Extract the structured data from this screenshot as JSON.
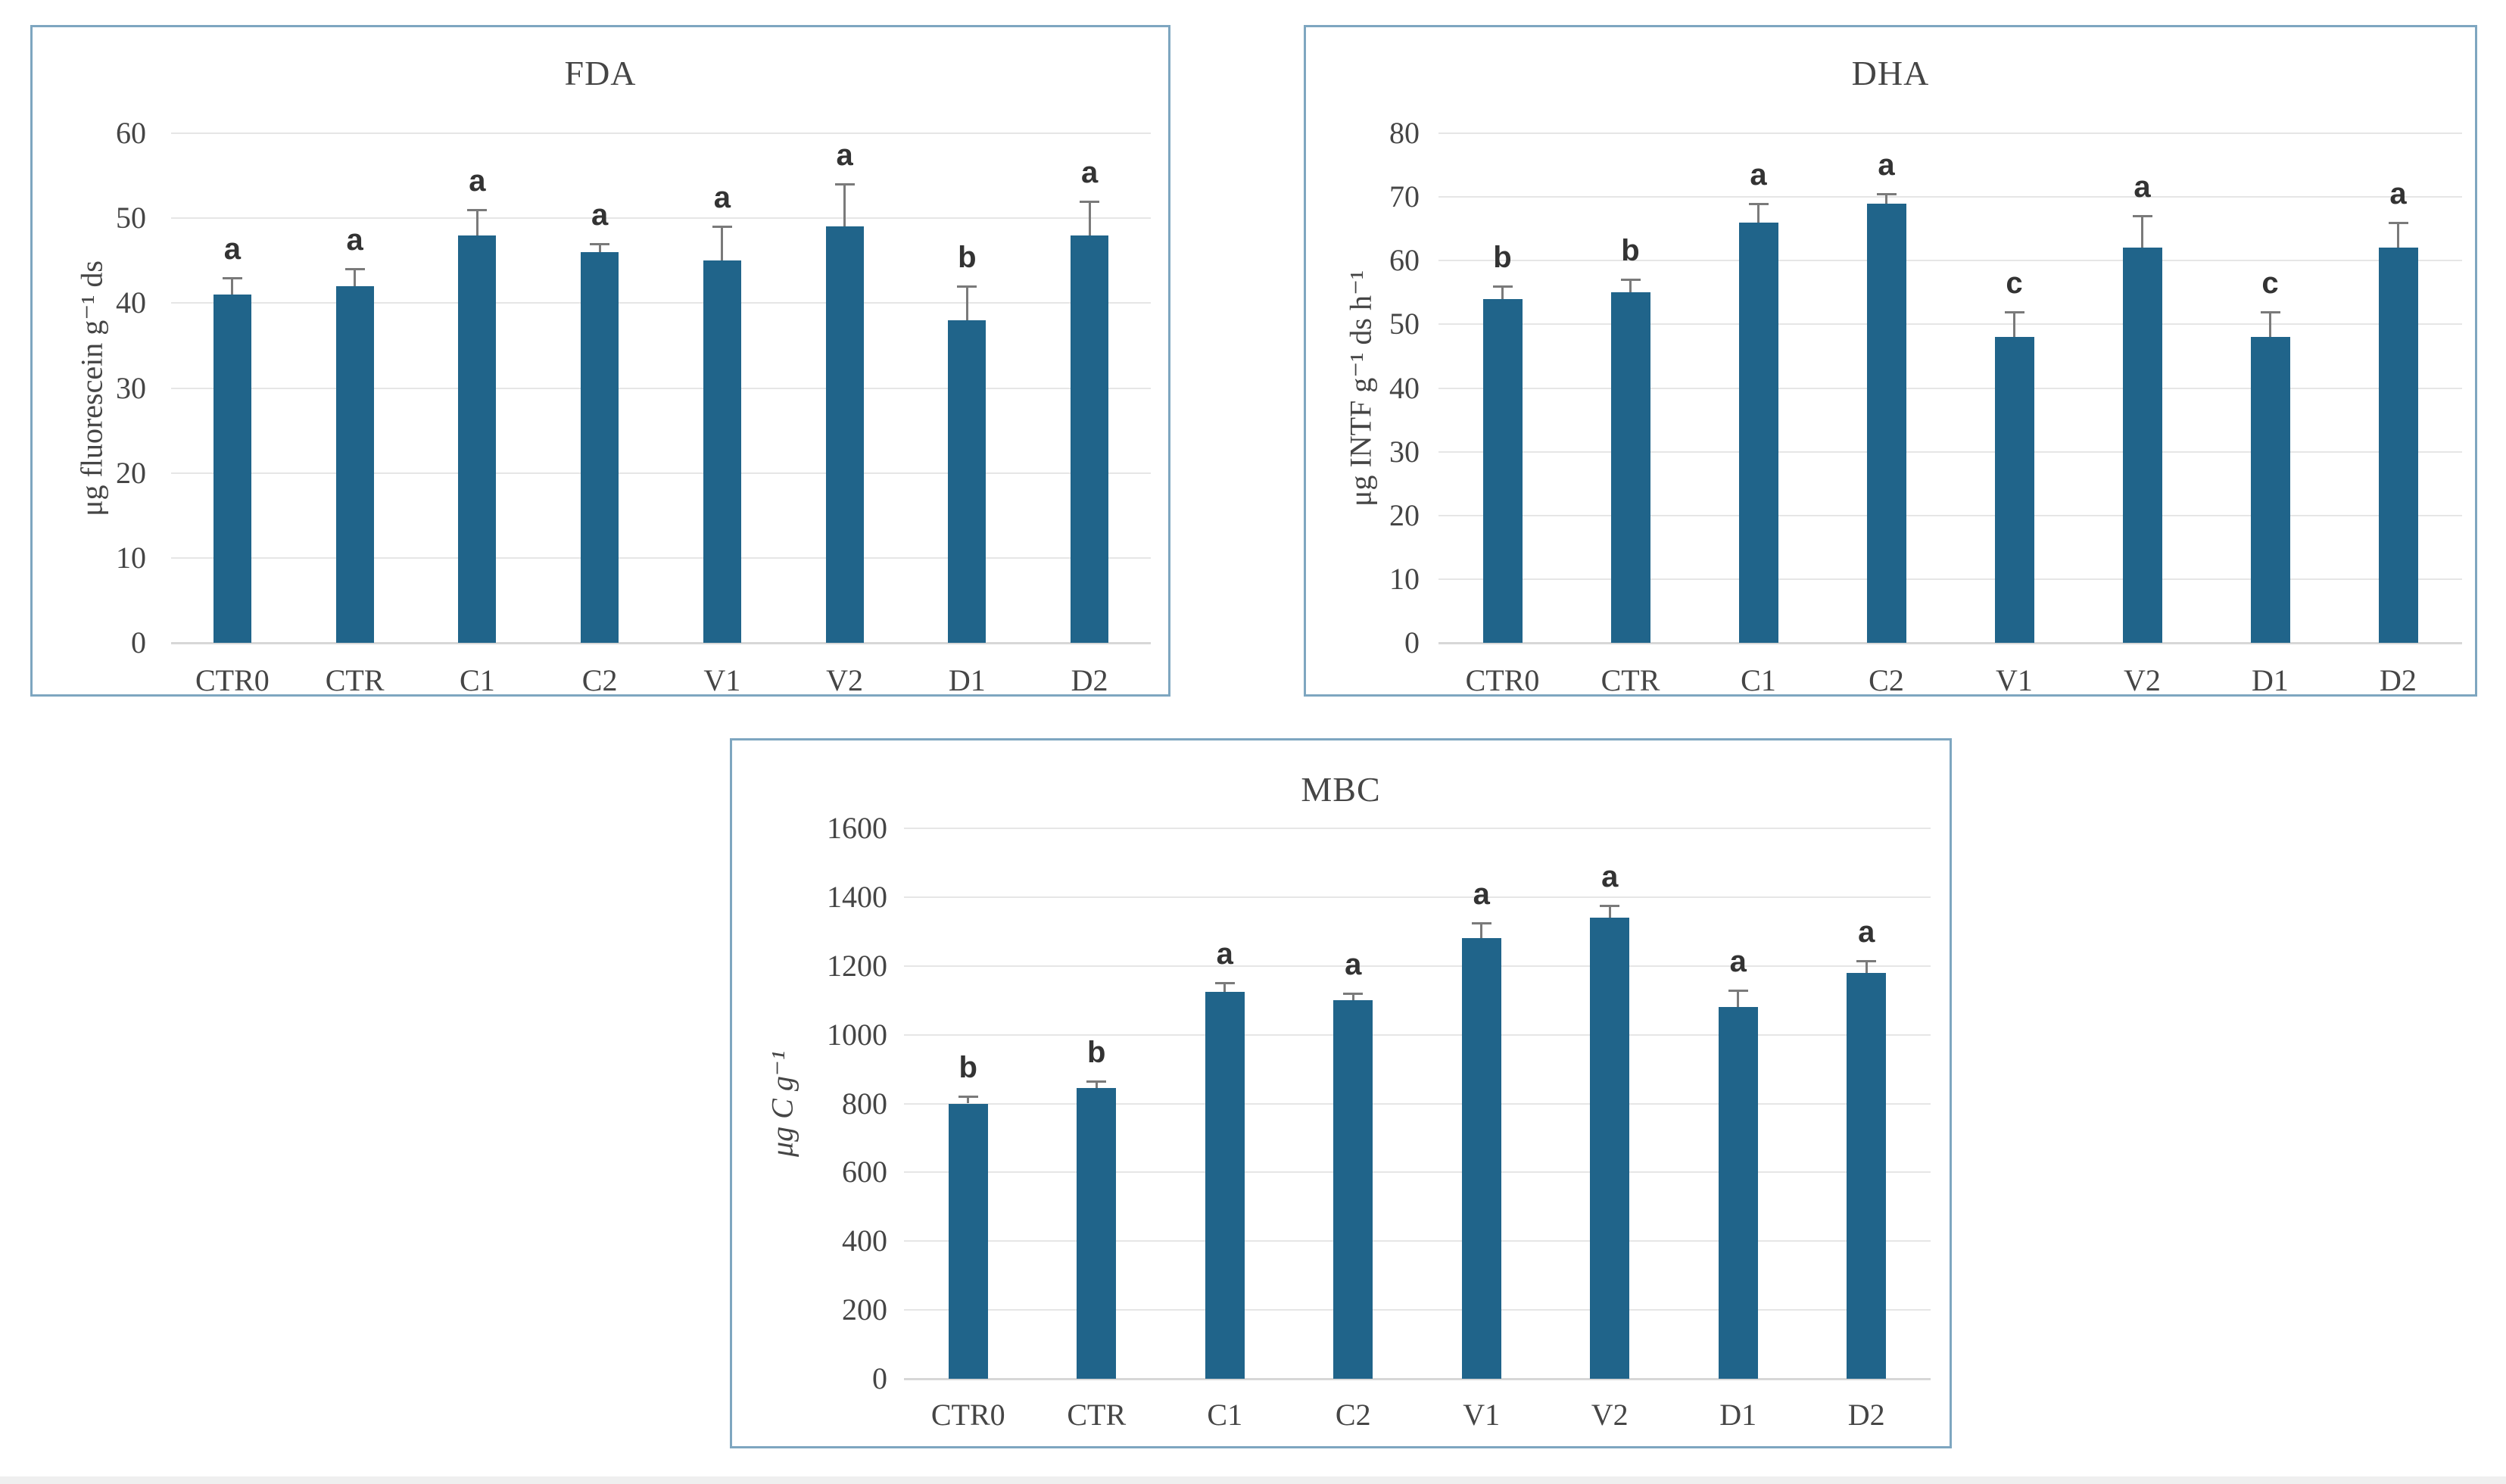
{
  "colors": {
    "bar_fill": "#20648a",
    "chart_border": "#7ea6c0",
    "gridline": "#e6e6e6",
    "axis_baseline": "#d7d7d7",
    "error_bar": "#7a7a7a",
    "text": "#454545",
    "sig_letter": "#333333"
  },
  "chart_data": [
    {
      "type": "bar",
      "title": "FDA",
      "xlabel": "",
      "ylabel": "μg fluorescein g⁻¹ ds",
      "categories": [
        "CTR0",
        "CTR",
        "C1",
        "C2",
        "V1",
        "V2",
        "D1",
        "D2"
      ],
      "values": [
        41,
        42,
        48,
        46,
        45,
        49,
        38,
        48
      ],
      "errors": [
        2,
        2,
        3,
        1,
        4,
        5,
        4,
        4
      ],
      "sig_letters": [
        "a",
        "a",
        "a",
        "a",
        "a",
        "a",
        "b",
        "a"
      ],
      "ylim": [
        0,
        60
      ],
      "ytick_step": 10,
      "grid": true,
      "legend": "none"
    },
    {
      "type": "bar",
      "title": "DHA",
      "xlabel": "",
      "ylabel": "μg INTF g⁻¹ ds h⁻¹",
      "categories": [
        "CTR0",
        "CTR",
        "C1",
        "C2",
        "V1",
        "V2",
        "D1",
        "D2"
      ],
      "values": [
        54,
        55,
        66,
        69,
        48,
        62,
        48,
        62
      ],
      "errors": [
        2,
        2,
        3,
        1.5,
        4,
        5,
        4,
        4
      ],
      "sig_letters": [
        "b",
        "b",
        "a",
        "a",
        "c",
        "a",
        "c",
        "a"
      ],
      "ylim": [
        0,
        80
      ],
      "ytick_step": 10,
      "grid": true,
      "legend": "none"
    },
    {
      "type": "bar",
      "title": "MBC",
      "xlabel": "",
      "ylabel": "μg C g⁻¹",
      "categories": [
        "CTR0",
        "CTR",
        "C1",
        "C2",
        "V1",
        "V2",
        "D1",
        "D2"
      ],
      "values": [
        800,
        845,
        1125,
        1100,
        1280,
        1340,
        1080,
        1180
      ],
      "errors": [
        20,
        20,
        25,
        20,
        45,
        35,
        50,
        35
      ],
      "sig_letters": [
        "b",
        "b",
        "a",
        "a",
        "a",
        "a",
        "a",
        "a"
      ],
      "ylim": [
        0,
        1600
      ],
      "ytick_step": 200,
      "grid": true,
      "legend": "none"
    }
  ]
}
